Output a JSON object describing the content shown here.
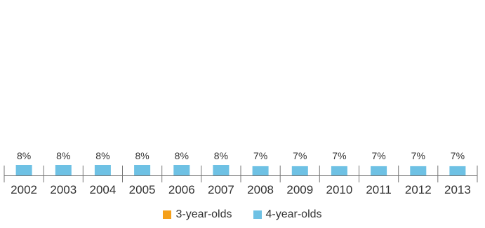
{
  "chart_data": {
    "type": "bar",
    "categories": [
      "2002",
      "2003",
      "2004",
      "2005",
      "2006",
      "2007",
      "2008",
      "2009",
      "2010",
      "2011",
      "2012",
      "2013"
    ],
    "series": [
      {
        "name": "3-year-olds",
        "color": "#f5a01a",
        "values": [
          0,
          0,
          0,
          0,
          0,
          0,
          0,
          0,
          0,
          0,
          0,
          0
        ]
      },
      {
        "name": "4-year-olds",
        "color": "#6ec1e4",
        "values": [
          8,
          8,
          8,
          8,
          8,
          8,
          7,
          7,
          7,
          7,
          7,
          7
        ]
      }
    ],
    "data_labels": [
      "8%",
      "8%",
      "8%",
      "8%",
      "8%",
      "8%",
      "7%",
      "7%",
      "7%",
      "7%",
      "7%",
      "7%"
    ],
    "value_suffix": "%",
    "ylim": [
      0,
      100
    ],
    "grid": false,
    "legend_position": "bottom-center"
  }
}
